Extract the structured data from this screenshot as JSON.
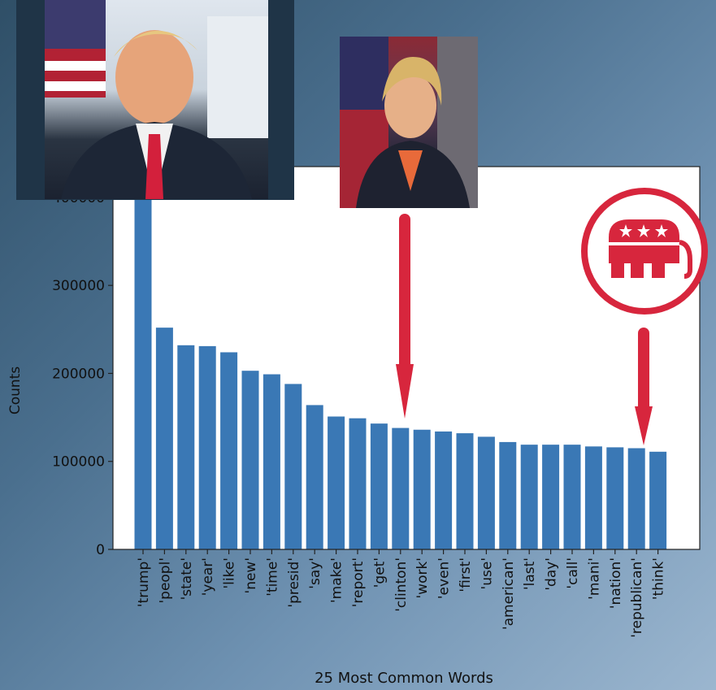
{
  "chart_data": {
    "type": "bar",
    "xlabel": "25 Most Common Words",
    "ylabel": "Counts",
    "ylim": [
      0,
      435000
    ],
    "yticks": [
      0,
      100000,
      200000,
      300000,
      400000
    ],
    "ytick_labels": [
      "0",
      "100000",
      "200000",
      "300000",
      "400000"
    ],
    "categories": [
      "'trump'",
      "'peopl'",
      "'state'",
      "'year'",
      "'like'",
      "'new'",
      "'time'",
      "'presid'",
      "'say'",
      "'make'",
      "'report'",
      "'get'",
      "'clinton'",
      "'work'",
      "'even'",
      "'first'",
      "'use'",
      "'american'",
      "'last'",
      "'day'",
      "'call'",
      "'mani'",
      "'nation'",
      "'republican'",
      "'think'"
    ],
    "values": [
      452000,
      252000,
      232000,
      231000,
      224000,
      203000,
      199000,
      188000,
      164000,
      151000,
      149000,
      143000,
      138000,
      136000,
      134000,
      132000,
      128000,
      122000,
      119000,
      119000,
      119000,
      117000,
      116000,
      115000,
      111000
    ],
    "bar_color": "#3a78b5",
    "grid": false
  },
  "annotations": {
    "arrow_color": "#d7263d",
    "arrow_targets": [
      "'clinton'",
      "'republican'"
    ],
    "images": [
      "trump-portrait",
      "clinton-portrait",
      "republican-elephant-logo"
    ]
  }
}
